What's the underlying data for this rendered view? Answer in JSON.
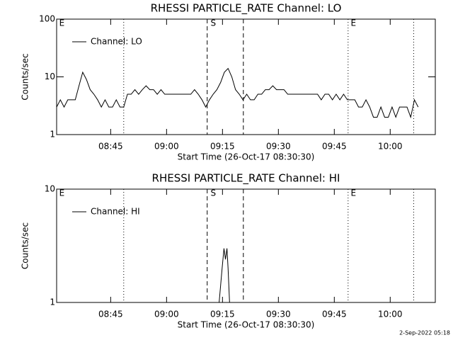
{
  "chart_data": [
    {
      "type": "line",
      "title": "RHESSI PARTICLE_RATE Channel: LO",
      "xlabel": "Start Time (26-Oct-17 08:30:30)",
      "ylabel": "Counts/sec",
      "xlim": [
        0,
        101.6
      ],
      "xticks": [
        {
          "value": 14.5,
          "label": "08:45"
        },
        {
          "value": 29.5,
          "label": "09:00"
        },
        {
          "value": 44.5,
          "label": "09:15"
        },
        {
          "value": 59.5,
          "label": "09:30"
        },
        {
          "value": 74.5,
          "label": "09:45"
        },
        {
          "value": 89.5,
          "label": "10:00"
        }
      ],
      "ylim": [
        1,
        100
      ],
      "yticks": [
        1,
        10,
        100
      ],
      "log_y": true,
      "legend": "upper left",
      "annotations": [
        {
          "text": "E",
          "x": 0.7
        },
        {
          "text": "S",
          "x": 41.3
        },
        {
          "text": "E",
          "x": 78.9
        }
      ],
      "vlines": [
        {
          "x": 18.0,
          "style": "dotted"
        },
        {
          "x": 40.4,
          "style": "dashed"
        },
        {
          "x": 50.1,
          "style": "dashed"
        },
        {
          "x": 78.2,
          "style": "dotted"
        },
        {
          "x": 95.8,
          "style": "dotted"
        }
      ],
      "series": [
        {
          "name": "Channel: LO",
          "color": "#000000",
          "x": [
            0,
            1,
            2,
            3,
            4,
            5,
            6,
            7,
            8,
            9,
            10,
            11,
            12,
            13,
            14,
            15,
            16,
            17,
            18,
            19,
            20,
            21,
            22,
            23,
            24,
            25,
            26,
            27,
            28,
            29,
            30,
            31,
            32,
            33,
            34,
            35,
            36,
            37,
            38,
            39,
            40,
            41,
            42,
            43,
            44,
            45,
            46,
            47,
            48,
            49,
            50,
            51,
            52,
            53,
            54,
            55,
            56,
            57,
            58,
            59,
            60,
            61,
            62,
            63,
            64,
            65,
            66,
            67,
            68,
            69,
            70,
            71,
            72,
            73,
            74,
            75,
            76,
            77,
            78,
            79,
            80,
            81,
            82,
            83,
            84,
            85,
            86,
            87,
            88,
            89,
            90,
            91,
            92,
            93,
            94,
            95,
            96,
            97
          ],
          "values": [
            3,
            4,
            3,
            4,
            4,
            4,
            7,
            12,
            9,
            6,
            5,
            4,
            3,
            4,
            3,
            3,
            4,
            3,
            3,
            5,
            5,
            6,
            5,
            6,
            7,
            6,
            6,
            5,
            6,
            5,
            5,
            5,
            5,
            5,
            5,
            5,
            5,
            6,
            5,
            4,
            3,
            4,
            5,
            6,
            8,
            12,
            14,
            10,
            6,
            5,
            4,
            5,
            4,
            4,
            5,
            5,
            6,
            6,
            7,
            6,
            6,
            6,
            5,
            5,
            5,
            5,
            5,
            5,
            5,
            5,
            5,
            4,
            5,
            5,
            4,
            5,
            4,
            5,
            4,
            4,
            4,
            3,
            3,
            4,
            3,
            2,
            2,
            3,
            2,
            2,
            3,
            2,
            3,
            3,
            3,
            2,
            4,
            3
          ]
        }
      ]
    },
    {
      "type": "line",
      "title": "RHESSI PARTICLE_RATE Channel: HI",
      "xlabel": "Start Time (26-Oct-17 08:30:30)",
      "ylabel": "Counts/sec",
      "xlim": [
        0,
        101.6
      ],
      "xticks": [
        {
          "value": 14.5,
          "label": "08:45"
        },
        {
          "value": 29.5,
          "label": "09:00"
        },
        {
          "value": 44.5,
          "label": "09:15"
        },
        {
          "value": 59.5,
          "label": "09:30"
        },
        {
          "value": 74.5,
          "label": "09:45"
        },
        {
          "value": 89.5,
          "label": "10:00"
        }
      ],
      "ylim": [
        1,
        10
      ],
      "yticks": [
        1,
        10
      ],
      "log_y": true,
      "legend": "upper left",
      "annotations": [
        {
          "text": "E",
          "x": 0.7
        },
        {
          "text": "S",
          "x": 41.3
        },
        {
          "text": "E",
          "x": 78.9
        }
      ],
      "vlines": [
        {
          "x": 18.0,
          "style": "dotted"
        },
        {
          "x": 40.4,
          "style": "dashed"
        },
        {
          "x": 50.1,
          "style": "dashed"
        },
        {
          "x": 78.2,
          "style": "dotted"
        },
        {
          "x": 95.8,
          "style": "dotted"
        }
      ],
      "series": [
        {
          "name": "Channel: HI",
          "color": "#000000",
          "x": [
            43.6,
            44.4,
            44.9,
            45.3,
            45.7,
            46.0,
            46.4
          ],
          "values": [
            1,
            2,
            3,
            2.4,
            3,
            2,
            1
          ]
        }
      ]
    }
  ],
  "footer": "2-Sep-2022 05:18"
}
